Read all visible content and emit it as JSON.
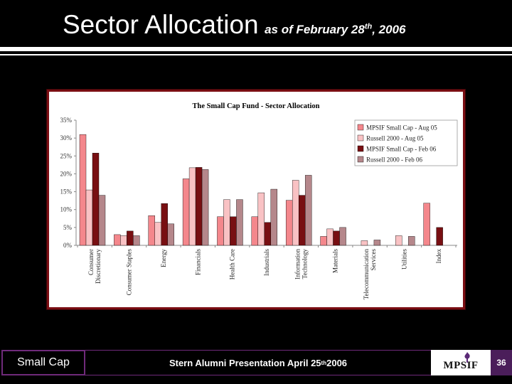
{
  "slide": {
    "title_main": "Sector Allocation",
    "title_sub_prefix": "as of February 28",
    "title_sub_sup": "th",
    "title_sub_suffix": ", 2006",
    "footer_left": "Small Cap",
    "footer_center_prefix": "Stern Alumni Presentation April 25",
    "footer_center_sup": "th",
    "footer_center_suffix": " 2006",
    "logo_text": "MPSIF",
    "page_number": "36"
  },
  "colors": {
    "series": [
      "#f4878c",
      "#f9c2c4",
      "#780f12",
      "#b5878b"
    ],
    "frame": "#7a0e13"
  },
  "chart_data": {
    "type": "bar",
    "title": "The Small Cap Fund - Sector Allocation",
    "xlabel": "",
    "ylabel": "",
    "ylim": [
      0,
      35
    ],
    "yticks": [
      "0%",
      "5%",
      "10%",
      "15%",
      "20%",
      "25%",
      "30%",
      "35%"
    ],
    "ytick_values": [
      0,
      5,
      10,
      15,
      20,
      25,
      30,
      35
    ],
    "grid": false,
    "legend_position": "top-right",
    "categories": [
      [
        "Consumer",
        "Discretionary"
      ],
      [
        "Consumer Staples"
      ],
      [
        "Energy"
      ],
      [
        "Financials"
      ],
      [
        "Health Care"
      ],
      [
        "Industrials"
      ],
      [
        "Information",
        "Technology"
      ],
      [
        "Materials"
      ],
      [
        "Telecommunication",
        "Services"
      ],
      [
        "Utilities"
      ],
      [
        "Index"
      ]
    ],
    "series": [
      {
        "name": "MPSIF Small Cap - Aug 05",
        "values": [
          31,
          3,
          8.3,
          18.6,
          8,
          8,
          12.6,
          2.5,
          0,
          0,
          11.8
        ]
      },
      {
        "name": "Russell 2000 - Aug 05",
        "values": [
          15.5,
          2.7,
          6.4,
          21.7,
          12.8,
          14.7,
          18.2,
          4.6,
          1.3,
          2.7,
          0
        ]
      },
      {
        "name": "MPSIF Small Cap - Feb 06",
        "values": [
          25.8,
          4,
          11.7,
          21.8,
          8,
          6.4,
          14,
          4,
          0,
          0,
          5
        ]
      },
      {
        "name": "Russell 2000 - Feb 06",
        "values": [
          14,
          2.7,
          6,
          21.2,
          12.8,
          15.7,
          19.6,
          5,
          1.5,
          2.5,
          0
        ]
      }
    ]
  }
}
